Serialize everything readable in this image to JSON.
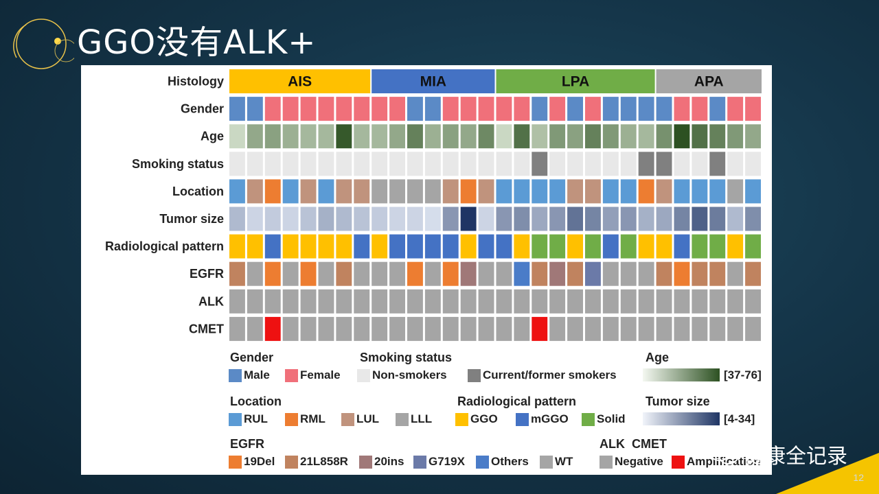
{
  "slide": {
    "title": "GGO没有ALK+",
    "page_number": "12",
    "watermark": "健康全记录"
  },
  "chart_data": {
    "type": "heatmap",
    "rows": [
      "Histology",
      "Gender",
      "Age",
      "Smoking status",
      "Location",
      "Tumor size",
      "Radiological pattern",
      "EGFR",
      "ALK",
      "CMET"
    ],
    "histology_groups": [
      {
        "label": "AIS",
        "count": 8,
        "color": "#ffc000"
      },
      {
        "label": "MIA",
        "count": 7,
        "color": "#4472c4"
      },
      {
        "label": "LPA",
        "count": 9,
        "color": "#70ad47"
      },
      {
        "label": "APA",
        "count": 6,
        "color": "#a5a5a5"
      }
    ],
    "gender": [
      "Male",
      "Male",
      "Female",
      "Female",
      "Female",
      "Female",
      "Female",
      "Female",
      "Female",
      "Female",
      "Male",
      "Male",
      "Female",
      "Female",
      "Female",
      "Female",
      "Female",
      "Male",
      "Female",
      "Male",
      "Female",
      "Male",
      "Male",
      "Male",
      "Male",
      "Female",
      "Female",
      "Male",
      "Female",
      "Female"
    ],
    "age_level": [
      0.15,
      0.45,
      0.5,
      0.4,
      0.35,
      0.35,
      0.95,
      0.35,
      0.35,
      0.45,
      0.7,
      0.4,
      0.5,
      0.45,
      0.65,
      0.15,
      0.8,
      0.3,
      0.55,
      0.5,
      0.7,
      0.55,
      0.4,
      0.35,
      0.6,
      1.0,
      0.8,
      0.7,
      0.55,
      0.45
    ],
    "smoking": [
      "Non-smokers",
      "Non-smokers",
      "Non-smokers",
      "Non-smokers",
      "Non-smokers",
      "Non-smokers",
      "Non-smokers",
      "Non-smokers",
      "Non-smokers",
      "Non-smokers",
      "Non-smokers",
      "Non-smokers",
      "Non-smokers",
      "Non-smokers",
      "Non-smokers",
      "Non-smokers",
      "Non-smokers",
      "Current/former smokers",
      "Non-smokers",
      "Non-smokers",
      "Non-smokers",
      "Non-smokers",
      "Non-smokers",
      "Current/former smokers",
      "Current/former smokers",
      "Non-smokers",
      "Non-smokers",
      "Current/former smokers",
      "Non-smokers",
      "Non-smokers"
    ],
    "location": [
      "RUL",
      "LUL",
      "RML",
      "RUL",
      "LUL",
      "RUL",
      "LUL",
      "LUL",
      "LLL",
      "LLL",
      "LLL",
      "LLL",
      "LUL",
      "RML",
      "LUL",
      "RUL",
      "RUL",
      "RUL",
      "RUL",
      "LUL",
      "LUL",
      "RUL",
      "RUL",
      "RML",
      "LUL",
      "RUL",
      "RUL",
      "RUL",
      "LLL",
      "RUL"
    ],
    "tumor_size_level": [
      0.25,
      0.1,
      0.15,
      0.1,
      0.2,
      0.3,
      0.25,
      0.2,
      0.15,
      0.1,
      0.1,
      0.05,
      0.45,
      1.0,
      0.1,
      0.45,
      0.5,
      0.35,
      0.45,
      0.65,
      0.55,
      0.4,
      0.45,
      0.3,
      0.35,
      0.55,
      0.75,
      0.6,
      0.25,
      0.5
    ],
    "radiological": [
      "GGO",
      "GGO",
      "mGGO",
      "GGO",
      "GGO",
      "GGO",
      "GGO",
      "mGGO",
      "GGO",
      "mGGO",
      "mGGO",
      "mGGO",
      "mGGO",
      "GGO",
      "mGGO",
      "mGGO",
      "GGO",
      "Solid",
      "Solid",
      "GGO",
      "Solid",
      "mGGO",
      "Solid",
      "GGO",
      "GGO",
      "mGGO",
      "Solid",
      "Solid",
      "GGO",
      "Solid"
    ],
    "egfr": [
      "21L858R",
      "WT",
      "19Del",
      "WT",
      "19Del",
      "WT",
      "21L858R",
      "WT",
      "WT",
      "WT",
      "19Del",
      "WT",
      "19Del",
      "20ins",
      "WT",
      "WT",
      "Others",
      "21L858R",
      "20ins",
      "21L858R",
      "G719X",
      "WT",
      "WT",
      "WT",
      "21L858R",
      "19Del",
      "21L858R",
      "21L858R",
      "WT",
      "21L858R"
    ],
    "alk": [
      "Negative",
      "Negative",
      "Negative",
      "Negative",
      "Negative",
      "Negative",
      "Negative",
      "Negative",
      "Negative",
      "Negative",
      "Negative",
      "Negative",
      "Negative",
      "Negative",
      "Negative",
      "Negative",
      "Negative",
      "Negative",
      "Negative",
      "Negative",
      "Negative",
      "Negative",
      "Negative",
      "Negative",
      "Negative",
      "Negative",
      "Negative",
      "Negative",
      "Negative",
      "Negative"
    ],
    "cmet": [
      "Negative",
      "Negative",
      "Amplification",
      "Negative",
      "Negative",
      "Negative",
      "Negative",
      "Negative",
      "Negative",
      "Negative",
      "Negative",
      "Negative",
      "Negative",
      "Negative",
      "Negative",
      "Negative",
      "Negative",
      "Amplification",
      "Negative",
      "Negative",
      "Negative",
      "Negative",
      "Negative",
      "Negative",
      "Negative",
      "Negative",
      "Negative",
      "Negative",
      "Negative",
      "Negative"
    ],
    "age_range": [
      37,
      76
    ],
    "tumor_size_range": [
      4,
      34
    ],
    "colors": {
      "Male": "#5b8ac6",
      "Female": "#f0707a",
      "Non-smokers": "#e8e8e8",
      "Current/former smokers": "#808080",
      "RUL": "#5b9bd5",
      "RML": "#ed7d31",
      "LUL": "#c0937d",
      "LLL": "#a5a5a5",
      "GGO": "#ffc000",
      "mGGO": "#4472c4",
      "Solid": "#70ad47",
      "19Del": "#ed7d31",
      "21L858R": "#c0835f",
      "20ins": "#a07878",
      "G719X": "#6b7aa8",
      "Others": "#4a7cc8",
      "WT": "#a5a5a5",
      "Negative": "#a5a5a5",
      "Amplification": "#ee1111",
      "age_low": "#e6f0df",
      "age_high": "#2d5122",
      "size_low": "#dfe6f2",
      "size_high": "#1f3564"
    }
  },
  "legend": {
    "gender": {
      "title": "Gender",
      "items": [
        "Male",
        "Female"
      ]
    },
    "smoking": {
      "title": "Smoking status",
      "items": [
        "Non-smokers",
        "Current/former smokers"
      ]
    },
    "age": {
      "title": "Age",
      "range": "[37-76]"
    },
    "location": {
      "title": "Location",
      "items": [
        "RUL",
        "RML",
        "LUL",
        "LLL"
      ]
    },
    "radiological": {
      "title": "Radiological pattern",
      "items": [
        "GGO",
        "mGGO",
        "Solid"
      ]
    },
    "tumor_size": {
      "title": "Tumor size",
      "range": "[4-34]"
    },
    "egfr": {
      "title": "EGFR",
      "items": [
        "19Del",
        "21L858R",
        "20ins",
        "G719X",
        "Others",
        "WT"
      ]
    },
    "alk_cmet": {
      "title": "ALK  CMET",
      "items": [
        "Negative",
        "Amplification"
      ]
    }
  }
}
